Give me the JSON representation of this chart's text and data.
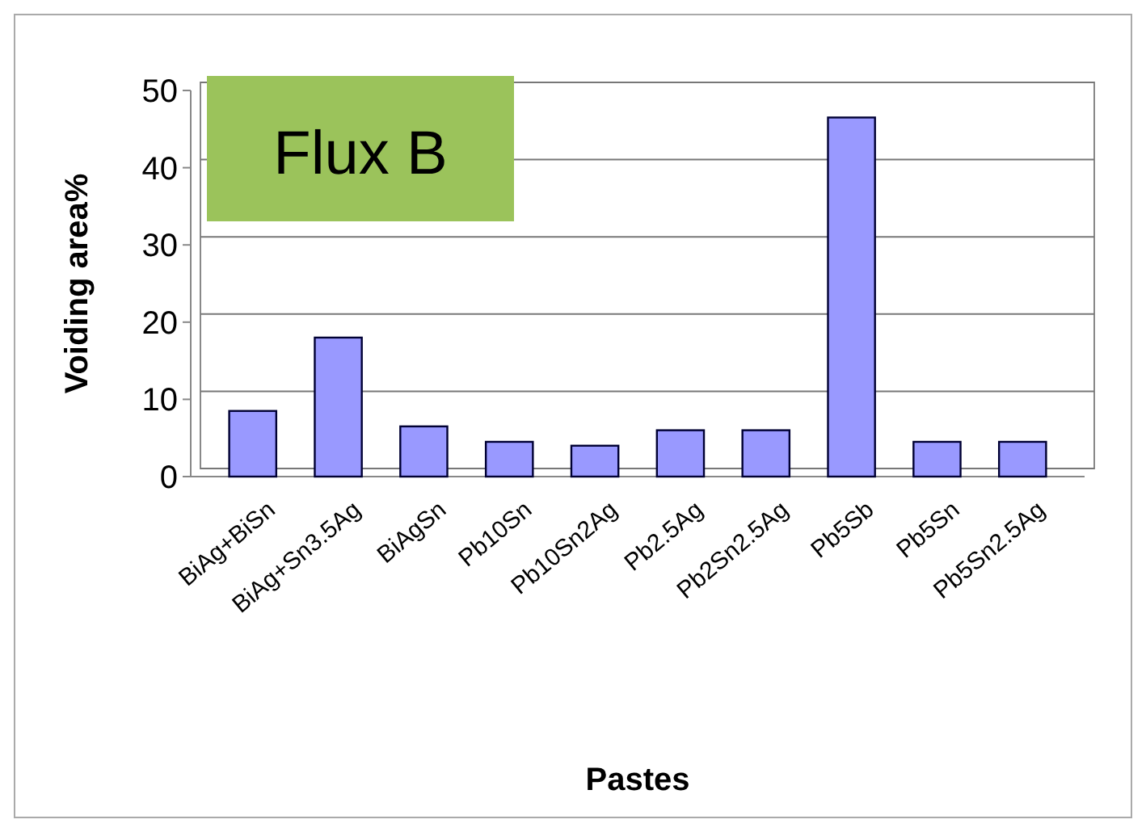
{
  "chart_data": {
    "type": "bar",
    "xlabel": "Pastes",
    "ylabel": "Voiding area%",
    "categories": [
      "BiAg+BiSn",
      "BiAg+Sn3.5Ag",
      "BiAgSn",
      "Pb10Sn",
      "Pb10Sn2Ag",
      "Pb2.5Ag",
      "Pb2Sn2.5Ag",
      "Pb5Sb",
      "Pb5Sn",
      "Pb5Sn2.5Ag"
    ],
    "values": [
      8.5,
      18,
      6.5,
      4.5,
      4,
      6,
      6,
      46.5,
      4.5,
      4.5
    ],
    "color": "#9999ff",
    "ylim": [
      0,
      50
    ],
    "yticks": [
      0,
      10,
      20,
      30,
      40,
      50
    ],
    "grid": "y",
    "annotations": [
      "Flux B"
    ]
  }
}
